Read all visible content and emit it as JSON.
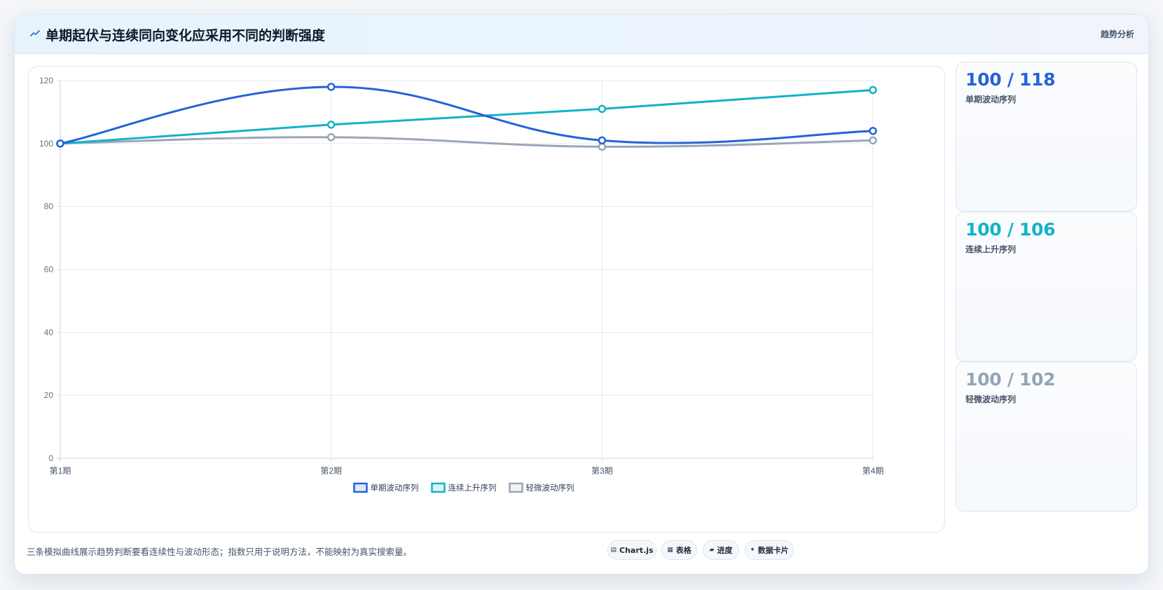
{
  "header": {
    "icon": "trend-line-icon",
    "title": "单期起伏与连续同向变化应采用不同的判断强度",
    "tag": "趋势分析"
  },
  "chart_data": {
    "type": "line",
    "categories": [
      "第1期",
      "第2期",
      "第3期",
      "第4期"
    ],
    "ylim": [
      0,
      120
    ],
    "yticks": [
      0,
      20,
      40,
      60,
      80,
      100,
      120
    ],
    "grid": true,
    "legend_position": "bottom",
    "series": [
      {
        "name": "单期波动序列",
        "values": [
          100,
          118,
          101,
          104
        ],
        "color": "#2563d8"
      },
      {
        "name": "连续上升序列",
        "values": [
          100,
          106,
          111,
          117
        ],
        "color": "#14b2c8"
      },
      {
        "name": "轻微波动序列",
        "values": [
          100,
          102,
          99,
          101
        ],
        "color": "#9aa6b8"
      }
    ]
  },
  "stats": [
    {
      "value": "100 / 118",
      "label": "单期波动序列",
      "color": "#2563d8"
    },
    {
      "value": "100 / 106",
      "label": "连续上升序列",
      "color": "#14b2c8"
    },
    {
      "value": "100 / 102",
      "label": "轻微波动序列",
      "color": "#94a3b8"
    }
  ],
  "footer": {
    "note": "三条模拟曲线展示趋势判断要看连续性与波动形态；指数只用于说明方法，不能映射为真实搜索量。",
    "chips": [
      {
        "icon": "▤",
        "label": "Chart.js"
      },
      {
        "icon": "▦",
        "label": "表格"
      },
      {
        "icon": "▰",
        "label": "进度"
      },
      {
        "icon": "✦",
        "label": "数据卡片"
      }
    ]
  }
}
